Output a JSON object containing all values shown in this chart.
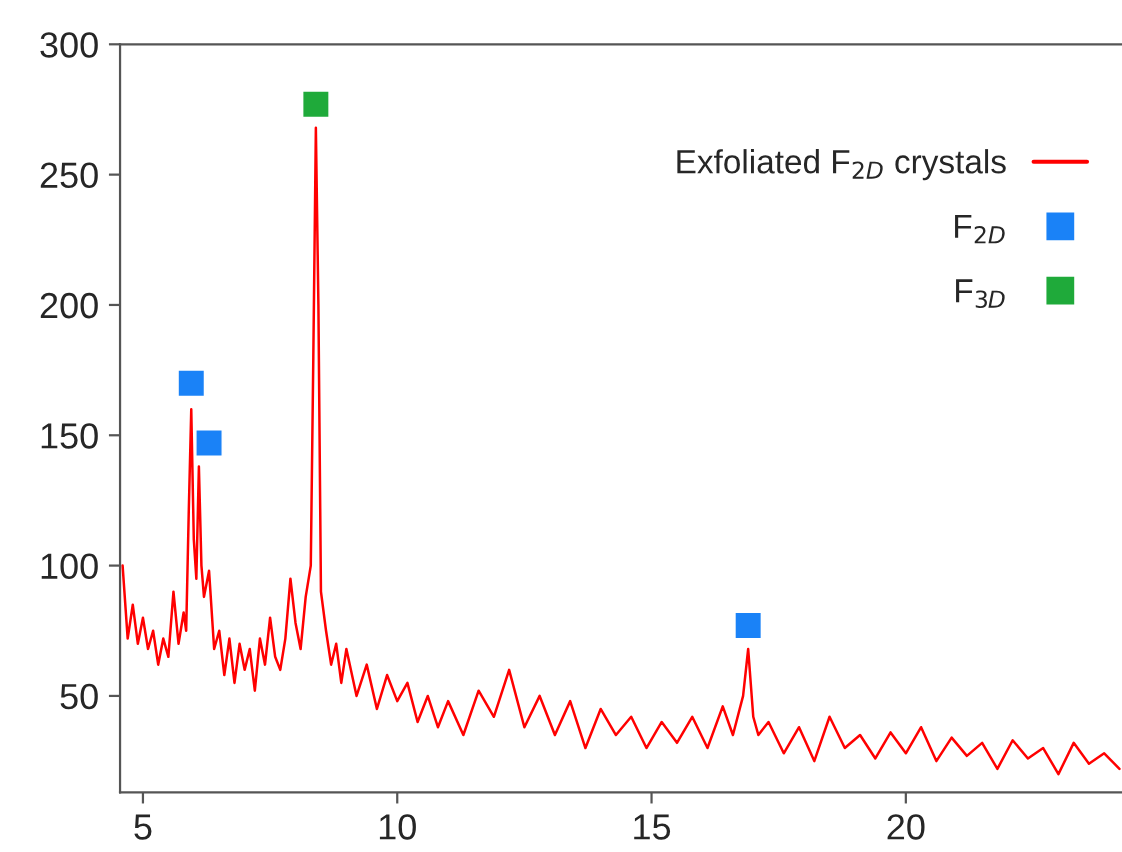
{
  "chart_data": {
    "type": "line",
    "xlim": [
      4.55,
      24.25
    ],
    "ylim": [
      13,
      300
    ],
    "xticks": [
      5,
      10,
      15,
      20
    ],
    "yticks": [
      50,
      100,
      150,
      200,
      250,
      300
    ],
    "grid": false,
    "legend": "top right",
    "series": [
      {
        "name": "Exfoliated F$_{2D}$ crystals",
        "color": "#ff0000",
        "marker": "none",
        "line_style": "solid",
        "x": [
          4.6,
          4.7,
          4.8,
          4.9,
          5.0,
          5.1,
          5.2,
          5.3,
          5.4,
          5.5,
          5.6,
          5.7,
          5.8,
          5.85,
          5.9,
          5.95,
          6.0,
          6.05,
          6.1,
          6.15,
          6.2,
          6.3,
          6.4,
          6.5,
          6.6,
          6.7,
          6.8,
          6.9,
          7.0,
          7.1,
          7.2,
          7.3,
          7.4,
          7.5,
          7.6,
          7.7,
          7.8,
          7.9,
          8.0,
          8.1,
          8.2,
          8.3,
          8.35,
          8.4,
          8.45,
          8.5,
          8.6,
          8.7,
          8.8,
          8.9,
          9.0,
          9.2,
          9.4,
          9.6,
          9.8,
          10.0,
          10.2,
          10.4,
          10.6,
          10.8,
          11.0,
          11.3,
          11.6,
          11.9,
          12.2,
          12.5,
          12.8,
          13.1,
          13.4,
          13.7,
          14.0,
          14.3,
          14.6,
          14.9,
          15.2,
          15.5,
          15.8,
          16.1,
          16.4,
          16.6,
          16.8,
          16.9,
          17.0,
          17.1,
          17.3,
          17.6,
          17.9,
          18.2,
          18.5,
          18.8,
          19.1,
          19.4,
          19.7,
          20.0,
          20.3,
          20.6,
          20.9,
          21.2,
          21.5,
          21.8,
          22.1,
          22.4,
          22.7,
          23.0,
          23.3,
          23.6,
          23.9,
          24.2
        ],
        "values": [
          100,
          72,
          85,
          70,
          80,
          68,
          75,
          62,
          72,
          65,
          90,
          70,
          82,
          75,
          120,
          160,
          110,
          95,
          138,
          100,
          88,
          98,
          68,
          75,
          58,
          72,
          55,
          70,
          60,
          68,
          52,
          72,
          62,
          80,
          65,
          60,
          72,
          95,
          78,
          68,
          88,
          100,
          180,
          268,
          200,
          90,
          75,
          62,
          70,
          55,
          68,
          50,
          62,
          45,
          58,
          48,
          55,
          40,
          50,
          38,
          48,
          35,
          52,
          42,
          60,
          38,
          50,
          35,
          48,
          30,
          45,
          35,
          42,
          30,
          40,
          32,
          42,
          30,
          46,
          35,
          50,
          68,
          42,
          35,
          40,
          28,
          38,
          25,
          42,
          30,
          35,
          26,
          36,
          28,
          38,
          25,
          34,
          27,
          32,
          22,
          33,
          26,
          30,
          20,
          32,
          24,
          28,
          22
        ]
      },
      {
        "name": "F$_{2D}$",
        "type": "scatter",
        "color": "#1a82f7",
        "marker": "square",
        "x": [
          5.95,
          6.3,
          16.9
        ],
        "values": [
          170,
          147,
          77
        ]
      },
      {
        "name": "F$_{3D}$",
        "type": "scatter",
        "color": "#1faa3a",
        "marker": "square",
        "x": [
          8.4
        ],
        "values": [
          277
        ]
      }
    ]
  }
}
